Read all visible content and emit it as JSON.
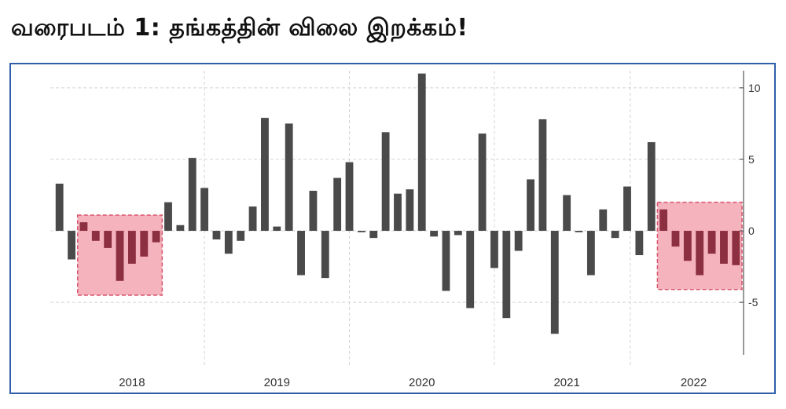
{
  "title": "வரைபடம் 1: தங்கத்தின் விலை இறக்கம்!",
  "chart_data": {
    "type": "bar",
    "year_labels": [
      {
        "label": "2018",
        "center_index": 6
      },
      {
        "label": "2019",
        "center_index": 18
      },
      {
        "label": "2020",
        "center_index": 30
      },
      {
        "label": "2021",
        "center_index": 42
      },
      {
        "label": "2022",
        "center_index": 52.5
      }
    ],
    "values": [
      3.3,
      -2.0,
      0.6,
      -0.7,
      -1.2,
      -3.5,
      -2.3,
      -1.8,
      -0.8,
      2.0,
      0.4,
      5.1,
      3.0,
      -0.6,
      -1.6,
      -0.7,
      1.7,
      7.9,
      0.3,
      7.5,
      -3.1,
      2.8,
      -3.3,
      3.7,
      4.8,
      -0.1,
      -0.5,
      6.9,
      2.6,
      2.9,
      11.0,
      -0.4,
      -4.2,
      -0.3,
      -5.4,
      6.8,
      -2.6,
      -6.1,
      -1.4,
      3.6,
      7.8,
      -7.2,
      2.5,
      -0.1,
      -3.1,
      1.5,
      -0.5,
      3.1,
      -1.7,
      6.2,
      1.5,
      -1.1,
      -2.1,
      -3.1,
      -1.6,
      -2.3,
      -2.4
    ],
    "yticks": [
      10,
      5,
      0,
      -5
    ],
    "ylim": [
      -9,
      11.2
    ],
    "grid": true,
    "y_axis_position": "right",
    "highlight_regions": [
      {
        "from_index": 2,
        "to_index": 8,
        "color": "#f29aa8",
        "border": "#d9566b"
      },
      {
        "from_index": 50,
        "to_index": 56,
        "color": "#f29aa8",
        "border": "#d9566b"
      }
    ],
    "colors": {
      "bar": "#4a4a4a",
      "bar_highlight": "#8c2f41",
      "grid": "#d4d4d4",
      "axis": "#555555"
    }
  }
}
